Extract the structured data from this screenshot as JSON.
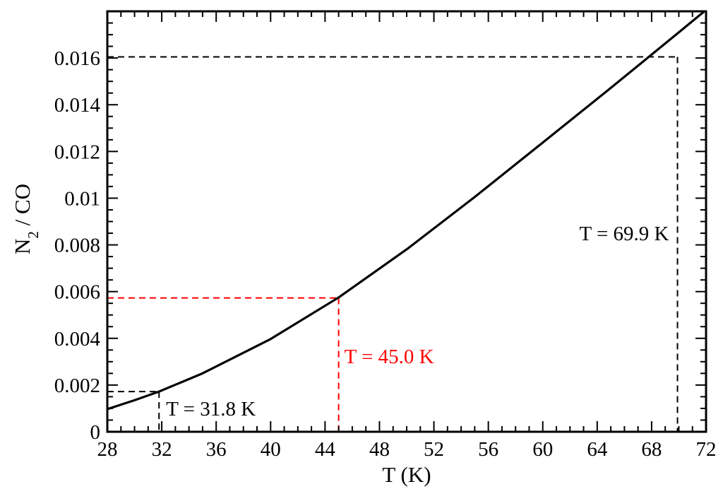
{
  "chart_data": {
    "type": "line",
    "xlabel": "T (K)",
    "ylabel_main": "N",
    "ylabel_sub": "2",
    "ylabel_rest": " / CO",
    "xlim": [
      28,
      72
    ],
    "ylim": [
      0,
      0.018
    ],
    "x_ticks": [
      28,
      32,
      36,
      40,
      44,
      48,
      52,
      56,
      60,
      64,
      68,
      72
    ],
    "x_tick_labels": [
      "28",
      "32",
      "36",
      "40",
      "44",
      "48",
      "52",
      "56",
      "60",
      "64",
      "68",
      "72"
    ],
    "y_ticks": [
      0,
      0.002,
      0.004,
      0.006,
      0.008,
      0.01,
      0.012,
      0.014,
      0.016
    ],
    "y_tick_labels": [
      "0",
      "0.002",
      "0.004",
      "0.006",
      "0.008",
      "0.01",
      "0.012",
      "0.014",
      "0.016"
    ],
    "series": [
      {
        "color": "#000000",
        "x": [
          28,
          30,
          31.8,
          35,
          40,
          45,
          50,
          55,
          60,
          65,
          70,
          72
        ],
        "y": [
          0.00097,
          0.00135,
          0.00172,
          0.0025,
          0.00397,
          0.00575,
          0.00781,
          0.01005,
          0.01238,
          0.01472,
          0.0171,
          0.01806
        ]
      }
    ],
    "annotations": [
      {
        "label": "T = 31.8 K",
        "x": 31.8,
        "y": 0.00172,
        "color": "#000000"
      },
      {
        "label": "T = 45.0 K",
        "x": 45.0,
        "y": 0.00573,
        "color": "#ff0000"
      },
      {
        "label": "T = 69.9 K",
        "x": 69.9,
        "y": 0.01605,
        "color": "#000000"
      }
    ]
  }
}
